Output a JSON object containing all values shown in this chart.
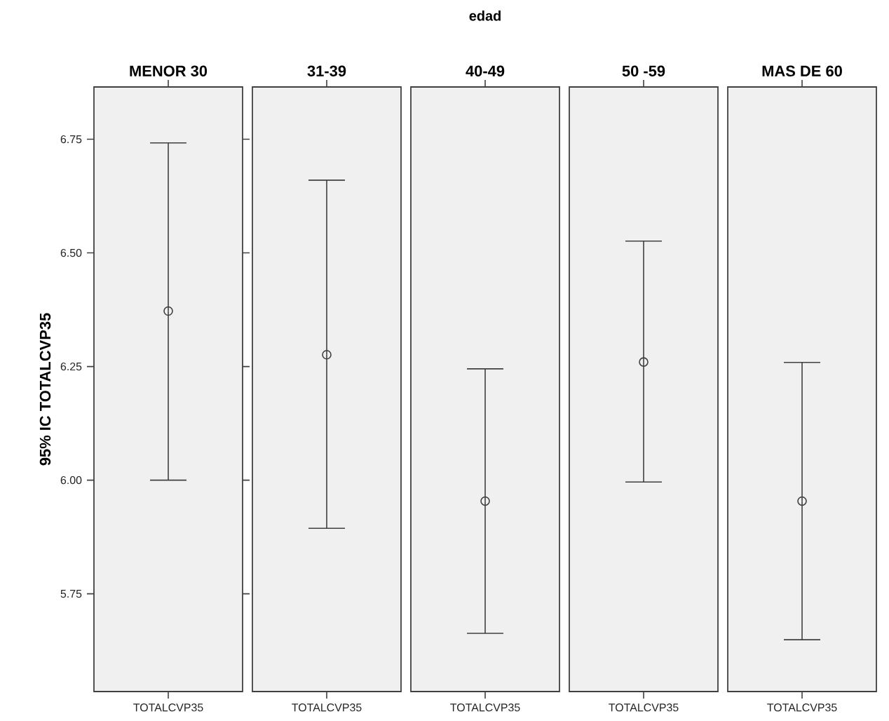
{
  "chart_data": [
    {
      "type": "scatter",
      "title": "MENOR 30",
      "ylabel": "95% IC TOTALCVP35",
      "annotations": [
        "edad"
      ],
      "categories": [
        "TOTALCVP35"
      ],
      "values": [
        6.372
      ],
      "errors": [
        [
          6.0,
          6.742
        ]
      ],
      "color": "#404040",
      "marker": "circle",
      "ylim": [
        5.535,
        6.865
      ],
      "yticks": [
        5.75,
        {
          "value": 6.0,
          "label": "6.00"
        },
        6.25,
        {
          "value": 6.5,
          "label": "6.50"
        },
        6.75
      ]
    },
    {
      "type": "scatter",
      "title": "31-39",
      "categories": [
        "TOTALCVP35"
      ],
      "values": [
        6.276
      ],
      "errors": [
        [
          5.894,
          6.66
        ]
      ],
      "color": "#404040",
      "marker": "circle",
      "ylim": [
        5.535,
        6.865
      ],
      "tick_labels": "x"
    },
    {
      "type": "scatter",
      "title": "40-49",
      "categories": [
        "TOTALCVP35"
      ],
      "values": [
        5.954
      ],
      "errors": [
        [
          5.663,
          6.245
        ]
      ],
      "color": "#404040",
      "marker": "circle",
      "ylim": [
        5.535,
        6.865
      ],
      "tick_labels": "x"
    },
    {
      "type": "scatter",
      "title": "50 -59",
      "categories": [
        "TOTALCVP35"
      ],
      "values": [
        6.26
      ],
      "errors": [
        [
          5.996,
          6.526
        ]
      ],
      "color": "#404040",
      "marker": "circle",
      "ylim": [
        5.535,
        6.865
      ],
      "tick_labels": "x"
    },
    {
      "type": "scatter",
      "title": "MAS DE 60",
      "categories": [
        "TOTALCVP35"
      ],
      "values": [
        5.954
      ],
      "errors": [
        [
          5.649,
          6.259
        ]
      ],
      "color": "#404040",
      "marker": "circle",
      "ylim": [
        5.535,
        6.865
      ],
      "tick_labels": "x"
    }
  ]
}
